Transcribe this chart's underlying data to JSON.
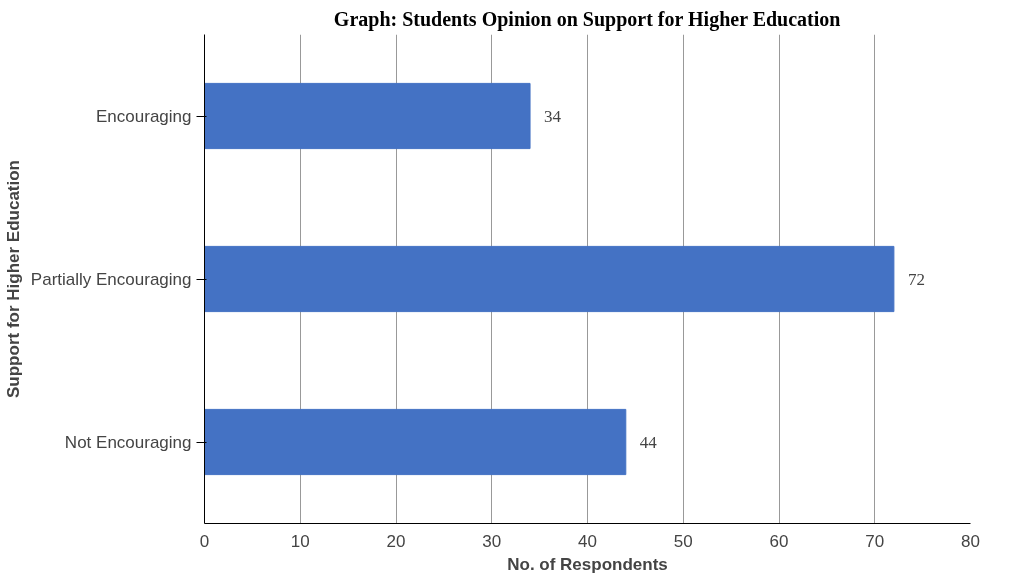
{
  "chart_data": {
    "type": "bar",
    "orientation": "horizontal",
    "title": "Graph: Students Opinion on Support for Higher Education",
    "xlabel": "No. of Respondents",
    "ylabel": "Support for Higher Education",
    "categories": [
      "Encouraging",
      "Partially Encouraging",
      "Not Encouraging"
    ],
    "values": [
      34,
      72,
      44
    ],
    "color": "#4472c4",
    "data_labels": true,
    "xlim": [
      0,
      80
    ],
    "xticks": [
      0,
      10,
      20,
      30,
      40,
      50,
      60,
      70,
      80
    ],
    "grid": "x"
  }
}
